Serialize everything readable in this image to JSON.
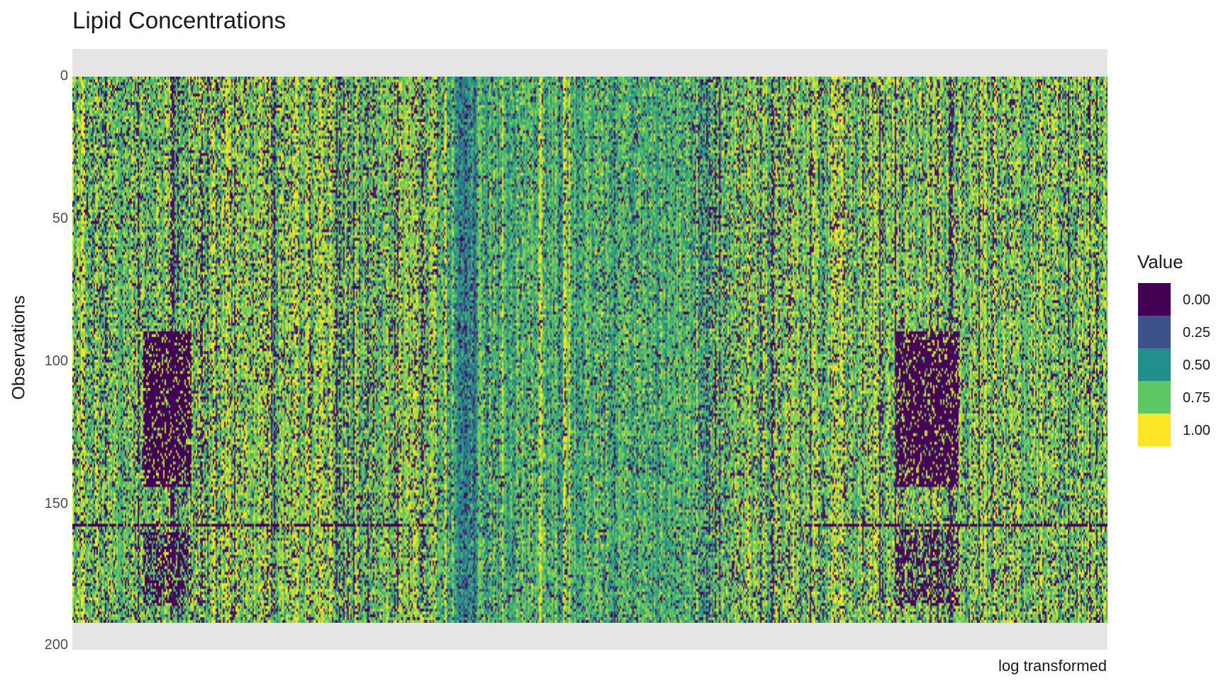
{
  "chart_data": {
    "type": "heatmap",
    "title": "Lipid Concentrations",
    "ylabel": "Observations",
    "xlabel": "",
    "caption": "log transformed",
    "y_ticks": [
      "0",
      "50",
      "100",
      "150",
      "200"
    ],
    "ylim": [
      200,
      0
    ],
    "n_observations": 193,
    "n_features": 730,
    "value_range": [
      0,
      1
    ],
    "colorscale": "viridis",
    "legend": {
      "title": "Value",
      "placement": "right",
      "entries": [
        {
          "label": "0.00",
          "color": "#440154"
        },
        {
          "label": "0.25",
          "color": "#3b528b"
        },
        {
          "label": "0.50",
          "color": "#21908c"
        },
        {
          "label": "0.75",
          "color": "#5dc863"
        },
        {
          "label": "1.00",
          "color": "#fde725"
        }
      ]
    }
  }
}
